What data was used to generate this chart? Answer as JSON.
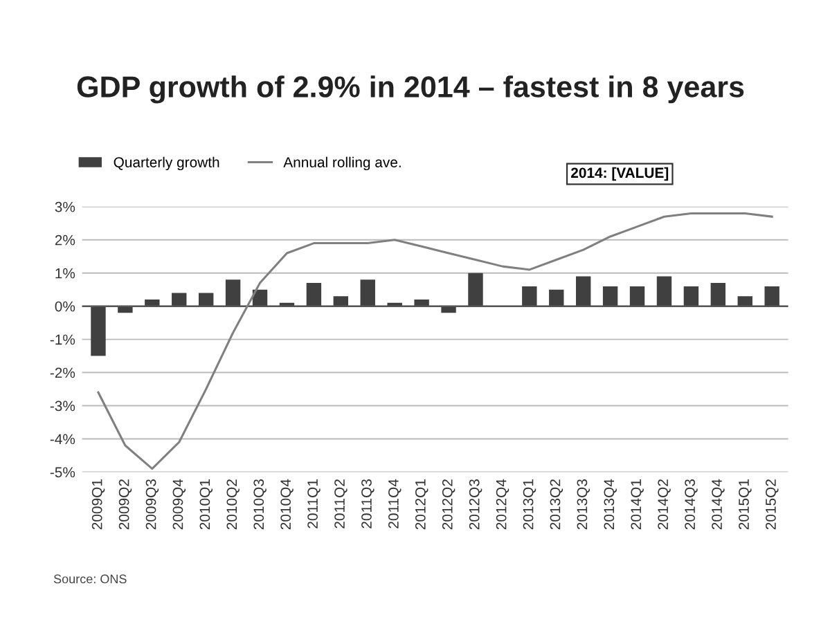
{
  "chart_data": {
    "type": "bar",
    "title": "GDP growth of 2.9% in 2014 – fastest in 8 years",
    "categories": [
      "2009Q1",
      "2009Q2",
      "2009Q3",
      "2009Q4",
      "2010Q1",
      "2010Q2",
      "2010Q3",
      "2010Q4",
      "2011Q1",
      "2011Q2",
      "2011Q3",
      "2011Q4",
      "2012Q1",
      "2012Q2",
      "2012Q3",
      "2012Q4",
      "2013Q1",
      "2013Q2",
      "2013Q3",
      "2013Q4",
      "2014Q1",
      "2014Q2",
      "2014Q3",
      "2014Q4",
      "2015Q1",
      "2015Q2"
    ],
    "series": [
      {
        "name": "Quarterly growth",
        "color": "#404040",
        "values": [
          -1.5,
          -0.2,
          0.2,
          0.4,
          0.4,
          0.8,
          0.5,
          0.1,
          0.7,
          0.3,
          0.8,
          0.1,
          0.2,
          -0.2,
          1.0,
          0.0,
          0.6,
          0.5,
          0.9,
          0.6,
          0.6,
          0.9,
          0.6,
          0.7,
          0.3,
          0.6
        ]
      },
      {
        "name": "Annual rolling ave.",
        "type": "line",
        "color": "#808080",
        "values": [
          -2.6,
          -4.2,
          -4.9,
          -4.1,
          -2.5,
          -0.8,
          0.7,
          1.6,
          1.9,
          1.9,
          1.9,
          2.0,
          1.8,
          1.6,
          1.4,
          1.2,
          1.1,
          1.4,
          1.7,
          2.1,
          2.4,
          2.7,
          2.8,
          2.8,
          2.8,
          2.7
        ]
      }
    ],
    "ylim": [
      -5,
      3
    ],
    "yticks": [
      {
        "value": -5,
        "label": "-5%"
      },
      {
        "value": -4,
        "label": "-4%"
      },
      {
        "value": -3,
        "label": "-3%"
      },
      {
        "value": -2,
        "label": "-2%"
      },
      {
        "value": -1,
        "label": "-1%"
      },
      {
        "value": 0,
        "label": "0%"
      },
      {
        "value": 1,
        "label": "1%"
      },
      {
        "value": 2,
        "label": "2%"
      },
      {
        "value": 3,
        "label": "3%"
      }
    ],
    "grid": "y",
    "legend": "top left",
    "marker": "none",
    "line_style": "solid",
    "annotations": [
      "2014: [VALUE]",
      "Source: ONS"
    ]
  }
}
